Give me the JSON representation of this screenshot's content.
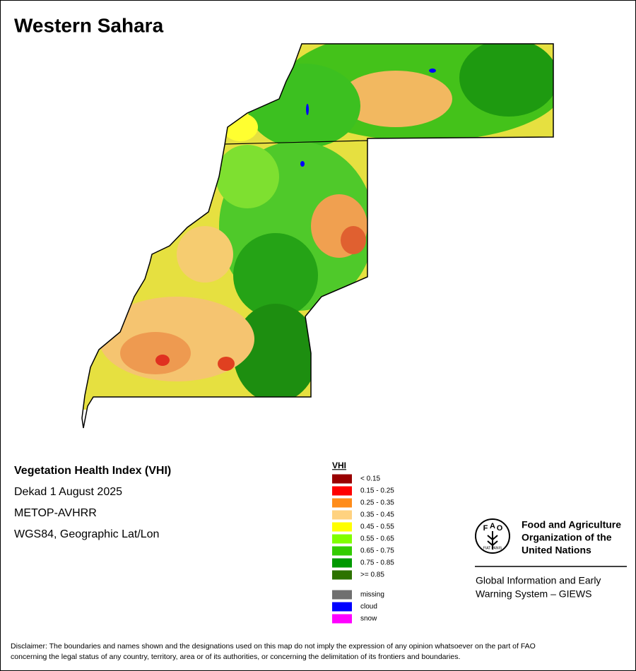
{
  "title": "Western Sahara",
  "info": [
    "Vegetation Health Index (VHI)",
    "Dekad 1 August 2025",
    "METOP-AVHRR",
    "WGS84, Geographic Lat/Lon"
  ],
  "legend": {
    "title": "VHI",
    "classes": [
      {
        "label": "< 0.15",
        "color": "#990000"
      },
      {
        "label": "0.15 - 0.25",
        "color": "#ff0000"
      },
      {
        "label": "0.25 - 0.35",
        "color": "#ff8c1a"
      },
      {
        "label": "0.35 - 0.45",
        "color": "#ffd280"
      },
      {
        "label": "0.45 - 0.55",
        "color": "#ffff00"
      },
      {
        "label": "0.55 - 0.65",
        "color": "#80ff00"
      },
      {
        "label": "0.65 - 0.75",
        "color": "#33cc00"
      },
      {
        "label": "0.75 - 0.85",
        "color": "#009900"
      },
      {
        "label": ">= 0.85",
        "color": "#2d7300"
      }
    ],
    "extra": [
      {
        "label": "missing",
        "color": "#707070"
      },
      {
        "label": "cloud",
        "color": "#0000ff"
      },
      {
        "label": "snow",
        "color": "#ff00ff"
      }
    ]
  },
  "logo": {
    "letters": [
      "F",
      "A",
      "O"
    ],
    "motto": "FIAT PANIS",
    "organization": [
      "Food and Agriculture",
      "Organization of the",
      "United Nations"
    ],
    "program": [
      "Global Information and Early",
      "Warning System – GIEWS"
    ]
  },
  "disclaimer": [
    "Disclaimer: The boundaries and names shown and the designations used on this map do not imply the expression of any opinion whatsoever on the part of FAO",
    "concerning the legal status of any country, territory, area or of its authorities, or concerning the delimitation of its frontiers and boundaries."
  ]
}
